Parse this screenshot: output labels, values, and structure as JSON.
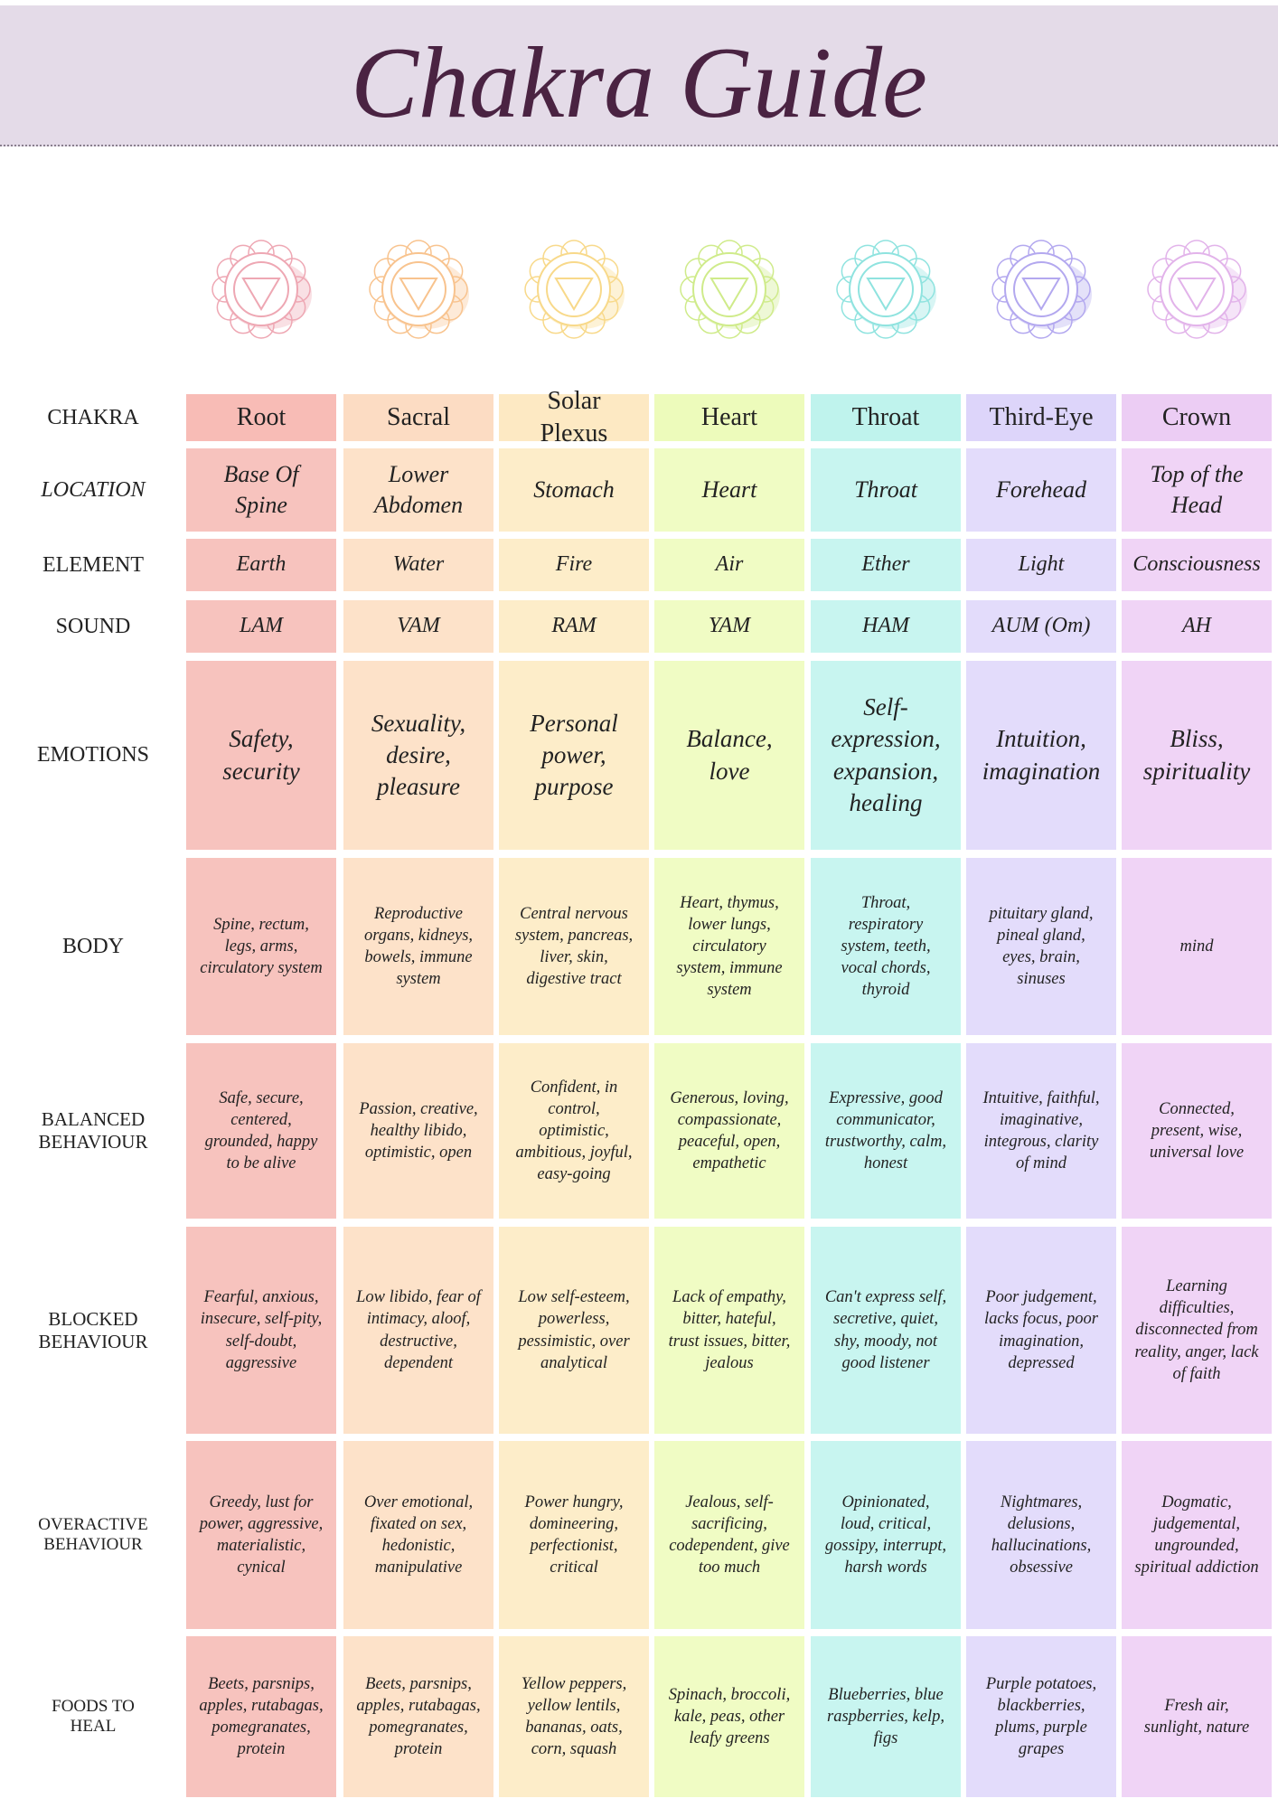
{
  "header": {
    "title": "Chakra Guide"
  },
  "table": {
    "row_labels": [
      "CHAKRA",
      "LOCATION",
      "ELEMENT",
      "SOUND",
      "EMOTIONS",
      "BODY",
      "BALANCED BEHAVIOUR",
      "BLOCKED BEHAVIOUR",
      "OVERACTIVE BEHAVIOUR",
      "FOODS TO HEAL"
    ],
    "rows": [
      [
        "Root",
        "Sacral",
        "Solar Plexus",
        "Heart",
        "Throat",
        "Third-Eye",
        "Crown"
      ],
      [
        "Base Of Spine",
        "Lower Abdomen",
        "Stomach",
        "Heart",
        "Throat",
        "Forehead",
        "Top of the Head"
      ],
      [
        "Earth",
        "Water",
        "Fire",
        "Air",
        "Ether",
        "Light",
        "Consciousness"
      ],
      [
        "LAM",
        "VAM",
        "RAM",
        "YAM",
        "HAM",
        "AUM (Om)",
        "AH"
      ],
      [
        "Safety, security",
        "Sexuality, desire, pleasure",
        "Personal power, purpose",
        "Balance, love",
        "Self-expression, expansion, healing",
        "Intuition, imagination",
        "Bliss, spirituality"
      ],
      [
        "Spine, rectum, legs, arms, circulatory system",
        "Reproductive organs, kidneys, bowels, immune system",
        "Central nervous system, pancreas, liver, skin, digestive tract",
        "Heart, thymus, lower lungs, circulatory system, immune system",
        "Throat, respiratory system, teeth, vocal chords, thyroid",
        "pituitary gland, pineal gland, eyes, brain, sinuses",
        "mind"
      ],
      [
        "Safe, secure, centered, grounded, happy to be alive",
        "Passion, creative, healthy libido, optimistic, open",
        "Confident, in control, optimistic, ambitious, joyful, easy-going",
        "Generous, loving, compassionate, peaceful, open, empathetic",
        "Expressive, good communicator, trustworthy, calm, honest",
        "Intuitive, faithful, imaginative, integrous, clarity of mind",
        "Connected, present, wise, universal love"
      ],
      [
        "Fearful, anxious, insecure, self-pity, self-doubt, aggressive",
        "Low libido, fear of intimacy, aloof, destructive, dependent",
        "Low self-esteem, powerless, pessimistic, over analytical",
        "Lack of empathy, bitter, hateful, trust issues, bitter, jealous",
        "Can't express self, secretive, quiet, shy, moody, not good listener",
        "Poor judgement, lacks focus, poor imagination, depressed",
        "Learning difficulties, disconnected from reality, anger, lack of faith"
      ],
      [
        "Greedy, lust for power, aggressive, materialistic, cynical",
        "Over emotional, fixated on sex, hedonistic, manipulative",
        "Power hungry, domineering, perfectionist, critical",
        "Jealous, self-sacrificing, codependent, give too much",
        "Opinionated, loud, critical, gossipy, interrupt, harsh words",
        "Nightmares, delusions, hallucinations, obsessive",
        "Dogmatic, judgemental, ungrounded, spiritual addiction"
      ],
      [
        "Beets, parsnips, apples, rutabagas, pomegranates, protein",
        "Beets, parsnips, apples, rutabagas, pomegranates, protein",
        "Yellow peppers, yellow lentils, bananas, oats, corn, squash",
        "Spinach, broccoli, kale, peas, other leafy greens",
        "Blueberries, blue raspberries, kelp, figs",
        "Purple potatoes, blackberries, plums, purple grapes",
        "Fresh air, sunlight, nature"
      ]
    ]
  }
}
